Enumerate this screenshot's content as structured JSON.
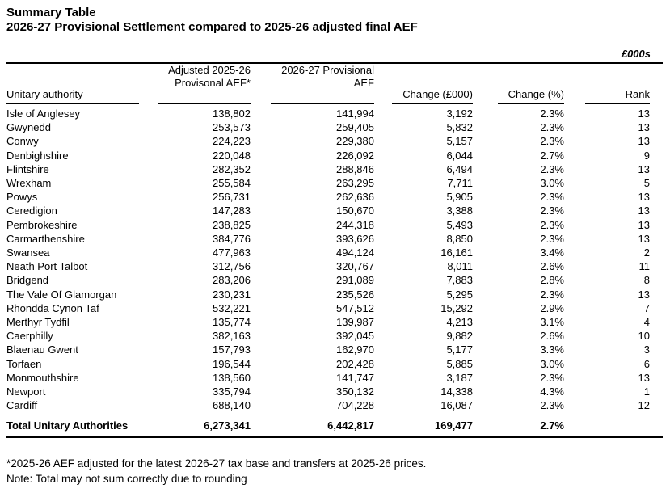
{
  "title": "Summary Table",
  "subtitle": "2026-27 Provisional Settlement compared to 2025-26 adjusted final AEF",
  "units_label": "£000s",
  "table": {
    "headers": {
      "authority": "Unitary authority",
      "adjusted_line1": "Adjusted 2025-26",
      "adjusted_line2": "Provisonal AEF*",
      "provisional_line1": "2026-27 Provisional",
      "provisional_line2": "AEF",
      "change": "Change (£000)",
      "change_pct": "Change (%)",
      "rank": "Rank"
    },
    "rows": [
      {
        "authority": "Isle of Anglesey",
        "adjusted": "138,802",
        "provisional": "141,994",
        "change": "3,192",
        "change_pct": "2.3%",
        "rank": "13"
      },
      {
        "authority": "Gwynedd",
        "adjusted": "253,573",
        "provisional": "259,405",
        "change": "5,832",
        "change_pct": "2.3%",
        "rank": "13"
      },
      {
        "authority": "Conwy",
        "adjusted": "224,223",
        "provisional": "229,380",
        "change": "5,157",
        "change_pct": "2.3%",
        "rank": "13"
      },
      {
        "authority": "Denbighshire",
        "adjusted": "220,048",
        "provisional": "226,092",
        "change": "6,044",
        "change_pct": "2.7%",
        "rank": "9"
      },
      {
        "authority": "Flintshire",
        "adjusted": "282,352",
        "provisional": "288,846",
        "change": "6,494",
        "change_pct": "2.3%",
        "rank": "13"
      },
      {
        "authority": "Wrexham",
        "adjusted": "255,584",
        "provisional": "263,295",
        "change": "7,711",
        "change_pct": "3.0%",
        "rank": "5"
      },
      {
        "authority": "Powys",
        "adjusted": "256,731",
        "provisional": "262,636",
        "change": "5,905",
        "change_pct": "2.3%",
        "rank": "13"
      },
      {
        "authority": "Ceredigion",
        "adjusted": "147,283",
        "provisional": "150,670",
        "change": "3,388",
        "change_pct": "2.3%",
        "rank": "13"
      },
      {
        "authority": "Pembrokeshire",
        "adjusted": "238,825",
        "provisional": "244,318",
        "change": "5,493",
        "change_pct": "2.3%",
        "rank": "13"
      },
      {
        "authority": "Carmarthenshire",
        "adjusted": "384,776",
        "provisional": "393,626",
        "change": "8,850",
        "change_pct": "2.3%",
        "rank": "13"
      },
      {
        "authority": "Swansea",
        "adjusted": "477,963",
        "provisional": "494,124",
        "change": "16,161",
        "change_pct": "3.4%",
        "rank": "2"
      },
      {
        "authority": "Neath Port Talbot",
        "adjusted": "312,756",
        "provisional": "320,767",
        "change": "8,011",
        "change_pct": "2.6%",
        "rank": "11"
      },
      {
        "authority": "Bridgend",
        "adjusted": "283,206",
        "provisional": "291,089",
        "change": "7,883",
        "change_pct": "2.8%",
        "rank": "8"
      },
      {
        "authority": "The Vale Of Glamorgan",
        "adjusted": "230,231",
        "provisional": "235,526",
        "change": "5,295",
        "change_pct": "2.3%",
        "rank": "13"
      },
      {
        "authority": "Rhondda Cynon Taf",
        "adjusted": "532,221",
        "provisional": "547,512",
        "change": "15,292",
        "change_pct": "2.9%",
        "rank": "7"
      },
      {
        "authority": "Merthyr Tydfil",
        "adjusted": "135,774",
        "provisional": "139,987",
        "change": "4,213",
        "change_pct": "3.1%",
        "rank": "4"
      },
      {
        "authority": "Caerphilly",
        "adjusted": "382,163",
        "provisional": "392,045",
        "change": "9,882",
        "change_pct": "2.6%",
        "rank": "10"
      },
      {
        "authority": "Blaenau Gwent",
        "adjusted": "157,793",
        "provisional": "162,970",
        "change": "5,177",
        "change_pct": "3.3%",
        "rank": "3"
      },
      {
        "authority": "Torfaen",
        "adjusted": "196,544",
        "provisional": "202,428",
        "change": "5,885",
        "change_pct": "3.0%",
        "rank": "6"
      },
      {
        "authority": "Monmouthshire",
        "adjusted": "138,560",
        "provisional": "141,747",
        "change": "3,187",
        "change_pct": "2.3%",
        "rank": "13"
      },
      {
        "authority": "Newport",
        "adjusted": "335,794",
        "provisional": "350,132",
        "change": "14,338",
        "change_pct": "4.3%",
        "rank": "1"
      },
      {
        "authority": "Cardiff",
        "adjusted": "688,140",
        "provisional": "704,228",
        "change": "16,087",
        "change_pct": "2.3%",
        "rank": "12"
      }
    ],
    "total": {
      "authority": "Total Unitary Authorities",
      "adjusted": "6,273,341",
      "provisional": "6,442,817",
      "change": "169,477",
      "change_pct": "2.7%",
      "rank": ""
    }
  },
  "footnotes": [
    "*2025-26 AEF adjusted for the latest 2026-27 tax base and transfers at 2025-26 prices.",
    "Note: Total may not sum correctly due to rounding"
  ]
}
